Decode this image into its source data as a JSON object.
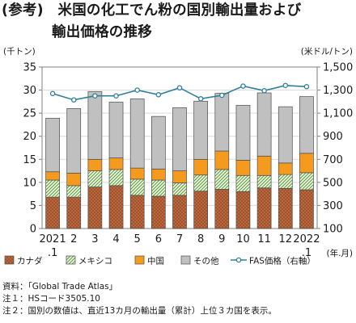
{
  "title_line1": "(参考)　米国の化工でん粉の国別輸出量および",
  "title_line2": "輸出価格の推移",
  "left_unit": "(千トン)",
  "right_unit": "(米ドル/トン)",
  "notes": [
    "資料：「Global Trade Atlas」",
    "注１：HSコード3505.10",
    "注２：国別の数値は、直近13カ月の輸出量（累計）上位３カ国を表示。"
  ],
  "colors": {
    "canada": "#a5522a",
    "mexico": "#e9f4de",
    "china": "#f39a1f",
    "other": "#c0c0c0",
    "fas_line": "#2f7f9c"
  },
  "chart_data": {
    "type": "bar",
    "stacked": true,
    "categories": [
      "2021\n.1",
      "2",
      "3",
      "4",
      "5",
      "6",
      "7",
      "8",
      "9",
      "10",
      "11",
      "12",
      "2022\n.1"
    ],
    "x_unit_label": "(年.月)",
    "left_axis": {
      "ylim": [
        0,
        35
      ],
      "ticks": [
        0,
        5,
        10,
        15,
        20,
        25,
        30,
        35
      ]
    },
    "right_axis": {
      "ylim": [
        100,
        1500
      ],
      "ticks": [
        100,
        300,
        500,
        700,
        900,
        1100,
        1300,
        1500
      ]
    },
    "series": [
      {
        "name": "カナダ",
        "key": "canada",
        "axis": "left",
        "values": [
          6.8,
          6.8,
          9.0,
          9.3,
          7.2,
          7.0,
          7.2,
          8.1,
          8.5,
          8.0,
          8.8,
          8.7,
          8.4
        ]
      },
      {
        "name": "メキシコ",
        "key": "mexico",
        "axis": "left",
        "values": [
          3.7,
          2.5,
          3.5,
          3.5,
          3.5,
          3.5,
          2.7,
          3.5,
          4.3,
          3.5,
          2.7,
          3.0,
          3.7
        ]
      },
      {
        "name": "中国",
        "key": "china",
        "axis": "left",
        "values": [
          1.8,
          2.7,
          2.5,
          2.5,
          2.4,
          2.4,
          2.6,
          3.4,
          4.0,
          3.3,
          4.2,
          2.5,
          4.2
        ]
      },
      {
        "name": "その他",
        "key": "other",
        "axis": "left",
        "values": [
          11.6,
          14.0,
          14.7,
          12.1,
          15.0,
          11.4,
          13.7,
          12.6,
          12.5,
          11.9,
          13.7,
          12.2,
          12.3
        ]
      },
      {
        "name": "FAS価格（右軸）",
        "key": "fas_line",
        "axis": "right",
        "type": "line",
        "values": [
          1270,
          1215,
          1250,
          1250,
          1300,
          1260,
          1320,
          1225,
          1255,
          1335,
          1295,
          1340,
          1330
        ]
      }
    ]
  }
}
